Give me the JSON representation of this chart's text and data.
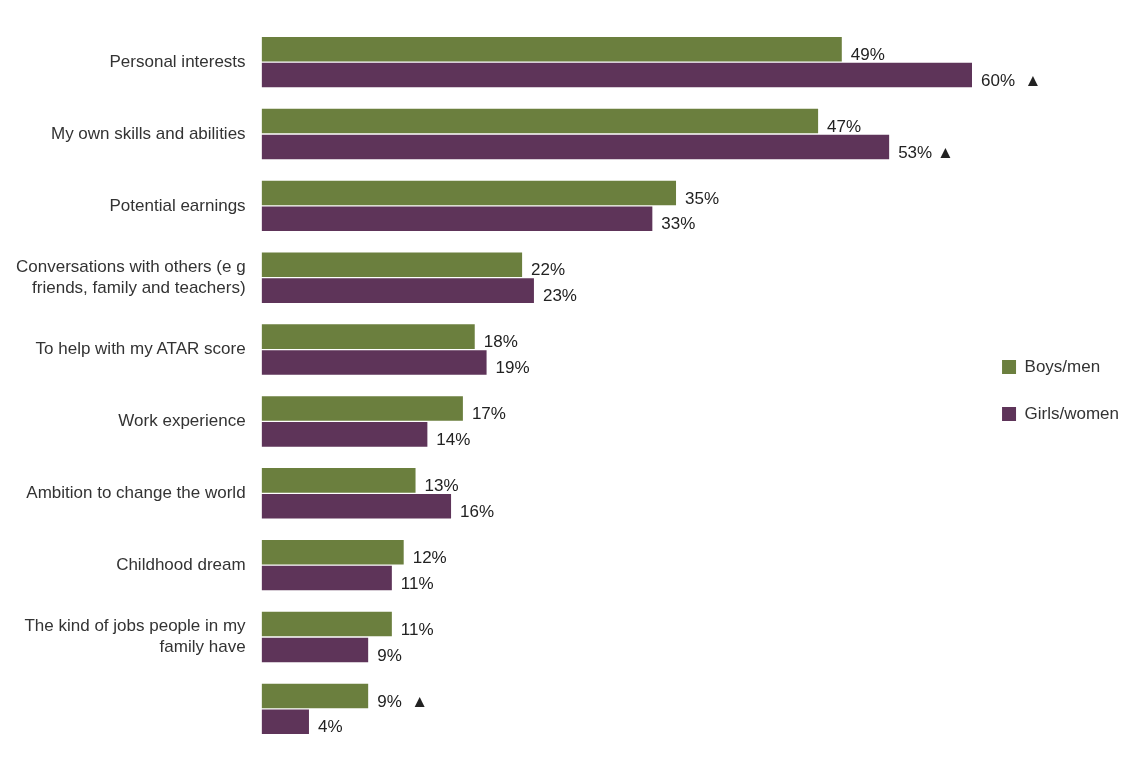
{
  "chart_data": {
    "type": "bar",
    "orientation": "horizontal",
    "categories": [
      "Personal interests",
      "My own skills and abilities",
      "Potential earnings",
      "Conversations with others (e g friends, family and teachers)",
      "To help with my ATAR score",
      "Work experience",
      "Ambition to change the world",
      "Childhood dream",
      "The kind of jobs people in my family have",
      null
    ],
    "tick_labels": "y",
    "grid": false,
    "legend": "right",
    "series": [
      {
        "name": "Boys/men",
        "color": "#6b7f3e",
        "values": [
          49,
          47,
          35,
          22,
          18,
          17,
          13,
          12,
          11,
          9
        ],
        "value_labels": [
          "49%",
          "47%",
          "35%",
          "22%",
          "18%",
          "17%",
          "13%",
          "12%",
          "11%",
          "9%  ▲"
        ]
      },
      {
        "name": "Girls/women",
        "color": "#5e3459",
        "values": [
          60,
          53,
          33,
          23,
          19,
          14,
          16,
          11,
          9,
          4
        ],
        "value_labels": [
          "60%  ▲",
          "53% ▲",
          "33%",
          "23%",
          "19%",
          "14%",
          "16%",
          "11%",
          "9%",
          "4%"
        ]
      }
    ]
  }
}
